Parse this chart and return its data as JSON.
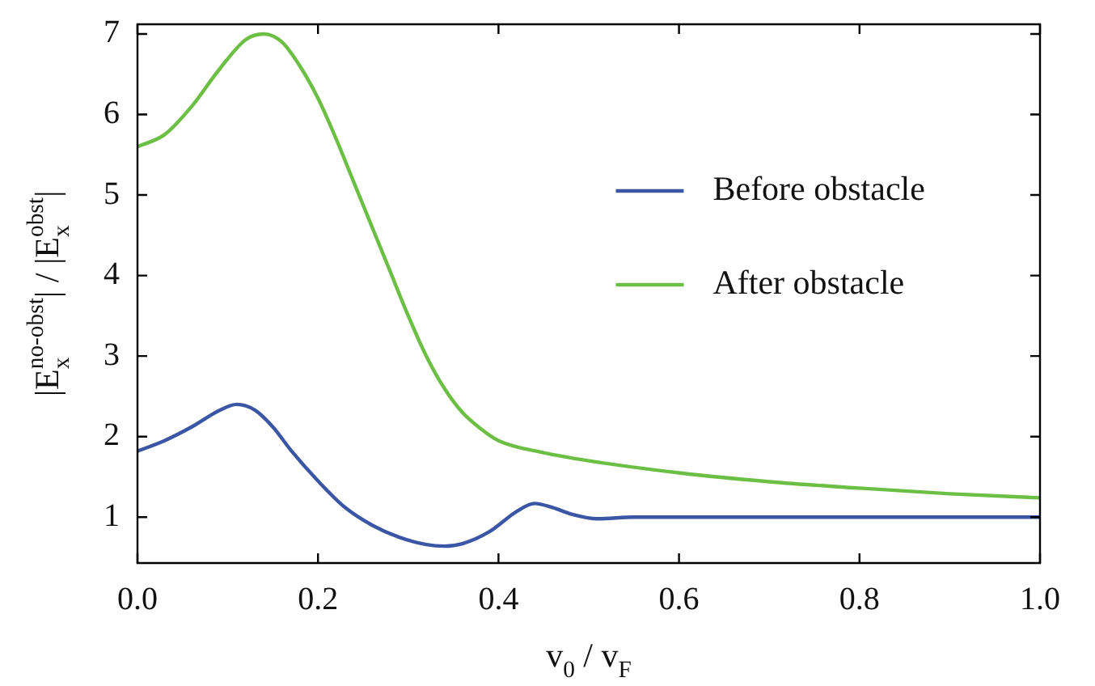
{
  "chart_data": {
    "type": "line",
    "xlabel": "v$_{0}$ / v$_{F}$",
    "ylabel": "|E$_{x}$$^{no-obst}$| / |E$_{x}$$^{obst}$|",
    "xlim": [
      0,
      1
    ],
    "xticks": [
      {
        "value": 0,
        "label": "0.0"
      },
      0.2,
      0.4,
      0.6,
      0.8,
      {
        "value": 1,
        "label": "1.0"
      }
    ],
    "ylim": [
      0.43,
      7.12
    ],
    "yticks": [
      1,
      2,
      3,
      4,
      5,
      6,
      7
    ],
    "legend": "top right",
    "grid": false,
    "line_style": "solid",
    "marker": "none",
    "series": [
      {
        "name": "Before obstacle",
        "color": "#3a56a5",
        "x": [
          0,
          0.03,
          0.06,
          0.09,
          0.11,
          0.13,
          0.15,
          0.17,
          0.2,
          0.23,
          0.26,
          0.29,
          0.32,
          0.34,
          0.36,
          0.39,
          0.42,
          0.44,
          0.46,
          0.48,
          0.51,
          0.55,
          0.6,
          0.7,
          0.8,
          0.9,
          1.0
        ],
        "values": [
          1.82,
          1.95,
          2.12,
          2.32,
          2.4,
          2.33,
          2.12,
          1.83,
          1.45,
          1.12,
          0.9,
          0.75,
          0.66,
          0.64,
          0.67,
          0.82,
          1.07,
          1.17,
          1.12,
          1.04,
          0.98,
          1.0,
          1.0,
          1.0,
          1.0,
          1.0,
          1.0
        ]
      },
      {
        "name": "After obstacle",
        "color": "#6cbf45",
        "x": [
          0,
          0.03,
          0.06,
          0.09,
          0.12,
          0.14,
          0.16,
          0.18,
          0.2,
          0.22,
          0.24,
          0.26,
          0.28,
          0.3,
          0.32,
          0.34,
          0.36,
          0.38,
          0.4,
          0.45,
          0.5,
          0.6,
          0.7,
          0.8,
          0.9,
          1.0
        ],
        "values": [
          5.6,
          5.75,
          6.1,
          6.55,
          6.93,
          7.0,
          6.9,
          6.6,
          6.2,
          5.7,
          5.15,
          4.6,
          4.05,
          3.5,
          3.0,
          2.6,
          2.3,
          2.1,
          1.95,
          1.8,
          1.7,
          1.55,
          1.44,
          1.36,
          1.29,
          1.24
        ]
      }
    ]
  }
}
